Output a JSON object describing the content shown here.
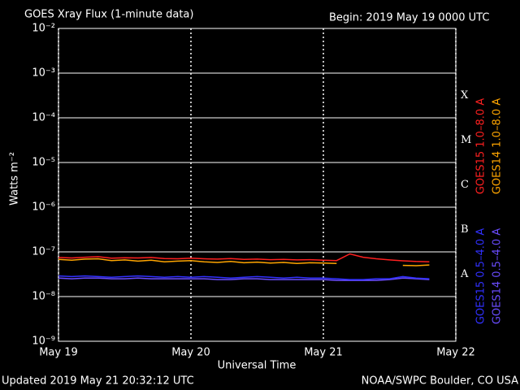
{
  "chart_data": {
    "type": "line",
    "title": "GOES Xray Flux (1-minute data)",
    "subtitle": "Begin:  2019 May 19 0000 UTC",
    "ylabel": "Watts m⁻²",
    "xlabel": "Universal Time",
    "footer_left": "Updated 2019 May 21 20:32:12 UTC",
    "footer_right": "NOAA/SWPC Boulder, CO USA",
    "log_y": true,
    "grid": true,
    "xlim": [
      0,
      3
    ],
    "xticks": [
      {
        "value": 0,
        "label": "May 19"
      },
      {
        "value": 1,
        "label": "May 20"
      },
      {
        "value": 2,
        "label": "May 21"
      },
      {
        "value": 3,
        "label": "May 22"
      }
    ],
    "ylim": [
      1e-09,
      0.01
    ],
    "yticks": [
      {
        "value": 1e-09,
        "label": "10⁻⁹"
      },
      {
        "value": 1e-08,
        "label": "10⁻⁸"
      },
      {
        "value": 1e-07,
        "label": "10⁻⁷"
      },
      {
        "value": 1e-06,
        "label": "10⁻⁶"
      },
      {
        "value": 1e-05,
        "label": "10⁻⁵"
      },
      {
        "value": 0.0001,
        "label": "10⁻⁴"
      },
      {
        "value": 0.001,
        "label": "10⁻³"
      },
      {
        "value": 0.01,
        "label": "10⁻²"
      }
    ],
    "flare_classes": [
      {
        "label": "A",
        "value": 1e-08
      },
      {
        "label": "B",
        "value": 1e-07
      },
      {
        "label": "C",
        "value": 1e-06
      },
      {
        "label": "M",
        "value": 1e-05
      },
      {
        "label": "X",
        "value": 0.0001
      }
    ],
    "x": [
      0,
      0.1,
      0.2,
      0.3,
      0.4,
      0.5,
      0.6,
      0.7,
      0.8,
      0.9,
      1.0,
      1.1,
      1.2,
      1.3,
      1.4,
      1.5,
      1.6,
      1.7,
      1.8,
      1.9,
      2.0,
      2.1,
      2.2,
      2.3,
      2.4,
      2.5,
      2.6,
      2.7,
      2.8
    ],
    "series": [
      {
        "name": "GOES15 1.0–8.0 A",
        "color": "#ff2020",
        "values": [
          7.5e-08,
          7.3e-08,
          7.6e-08,
          7.8e-08,
          7.2e-08,
          7.4e-08,
          7.3e-08,
          7.5e-08,
          7.1e-08,
          7e-08,
          7.2e-08,
          7e-08,
          6.9e-08,
          7.1e-08,
          6.8e-08,
          6.9e-08,
          6.7e-08,
          6.8e-08,
          6.6e-08,
          6.7e-08,
          6.5e-08,
          6.4e-08,
          9e-08,
          7.6e-08,
          7e-08,
          6.6e-08,
          6.3e-08,
          6.1e-08,
          6e-08
        ]
      },
      {
        "name": "GOES14 1.0–8.0 A",
        "color": "#ffa500",
        "values": [
          6.8e-08,
          6.5e-08,
          6.9e-08,
          7e-08,
          6.4e-08,
          6.6e-08,
          6.2e-08,
          6.5e-08,
          6e-08,
          6.2e-08,
          6.4e-08,
          6e-08,
          5.8e-08,
          6.1e-08,
          5.7e-08,
          5.9e-08,
          5.6e-08,
          5.8e-08,
          5.5e-08,
          5.7e-08,
          5.6e-08,
          5.5e-08,
          null,
          null,
          null,
          null,
          5e-08,
          4.9e-08,
          5.1e-08
        ]
      },
      {
        "name": "GOES15 0.5–4.0 A",
        "color": "#3030ff",
        "values": [
          2.9e-08,
          2.8e-08,
          2.9e-08,
          2.8e-08,
          2.7e-08,
          2.8e-08,
          2.9e-08,
          2.8e-08,
          2.7e-08,
          2.8e-08,
          2.7e-08,
          2.8e-08,
          2.7e-08,
          2.6e-08,
          2.7e-08,
          2.8e-08,
          2.7e-08,
          2.6e-08,
          2.7e-08,
          2.6e-08,
          2.6e-08,
          2.5e-08,
          2.4e-08,
          2.4e-08,
          2.5e-08,
          2.5e-08,
          2.8e-08,
          2.6e-08,
          2.5e-08
        ]
      },
      {
        "name": "GOES14 0.5–4.0 A",
        "color": "#6a4cff",
        "values": [
          2.6e-08,
          2.5e-08,
          2.6e-08,
          2.6e-08,
          2.5e-08,
          2.5e-08,
          2.6e-08,
          2.5e-08,
          2.5e-08,
          2.5e-08,
          2.5e-08,
          2.5e-08,
          2.4e-08,
          2.4e-08,
          2.5e-08,
          2.5e-08,
          2.4e-08,
          2.4e-08,
          2.4e-08,
          2.4e-08,
          2.4e-08,
          2.3e-08,
          2.3e-08,
          2.3e-08,
          2.3e-08,
          2.4e-08,
          2.6e-08,
          2.5e-08,
          2.4e-08
        ]
      }
    ]
  }
}
